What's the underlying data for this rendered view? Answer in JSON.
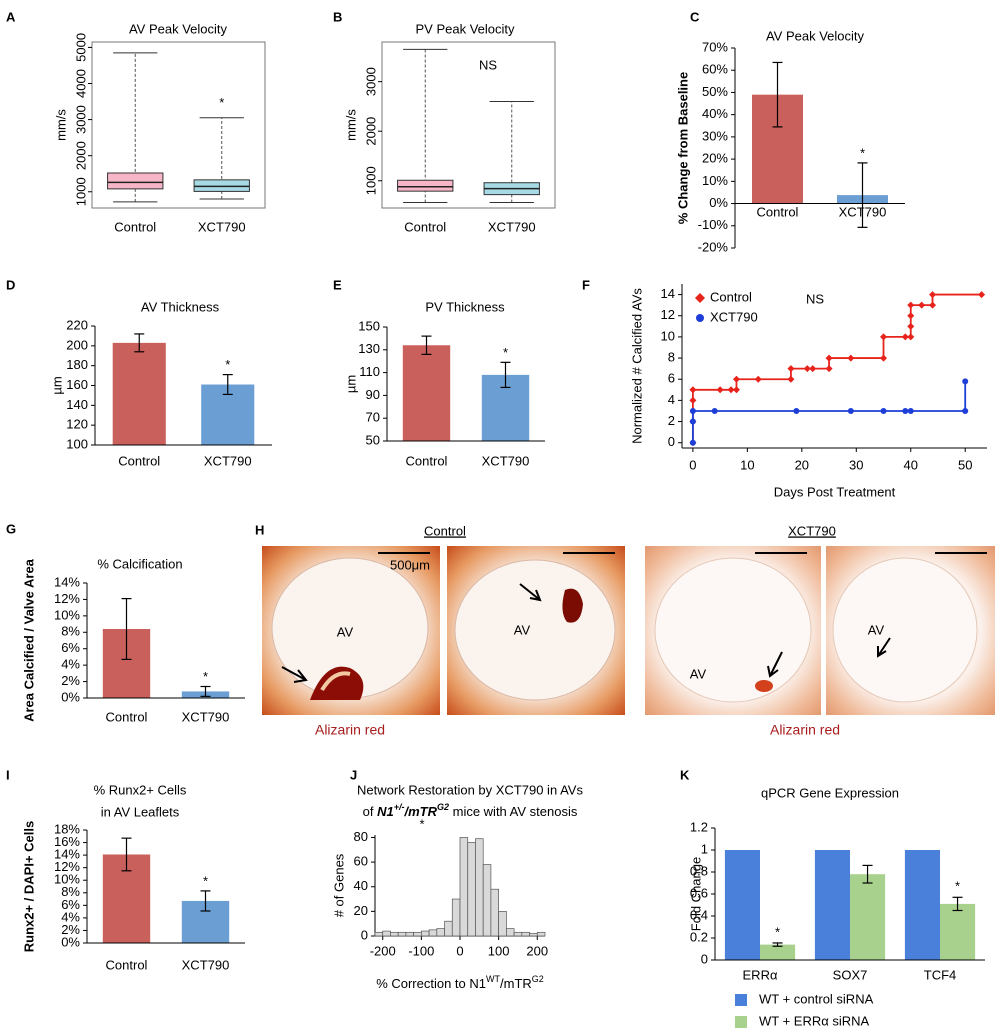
{
  "chart_data": [
    {
      "panel": "A",
      "type": "box",
      "title": "AV Peak Velocity",
      "ylabel": "mm/s",
      "categories": [
        "Control",
        "XCT790"
      ],
      "colors": [
        "#f7b6c8",
        "#a6dbe6"
      ],
      "boxes": [
        {
          "min": 720,
          "q1": 1080,
          "median": 1260,
          "q3": 1520,
          "max": 4850
        },
        {
          "min": 800,
          "q1": 1010,
          "median": 1150,
          "q3": 1330,
          "max": 3050
        }
      ],
      "ylim": [
        550,
        5150
      ],
      "yticks": [
        1000,
        2000,
        3000,
        4000,
        5000
      ],
      "annotations": [
        {
          "text": "*",
          "category": "XCT790"
        }
      ]
    },
    {
      "panel": "B",
      "type": "box",
      "title": "PV Peak Velocity",
      "ylabel": "mm/s",
      "categories": [
        "Control",
        "XCT790"
      ],
      "colors": [
        "#f7b6c8",
        "#a6dbe6"
      ],
      "boxes": [
        {
          "min": 560,
          "q1": 790,
          "median": 880,
          "q3": 1010,
          "max": 3650
        },
        {
          "min": 560,
          "q1": 720,
          "median": 840,
          "q3": 960,
          "max": 2600
        }
      ],
      "ylim": [
        450,
        3800
      ],
      "yticks": [
        1000,
        2000,
        3000
      ],
      "annotations": [
        {
          "text": "NS"
        }
      ]
    },
    {
      "panel": "C",
      "type": "bar",
      "title": "AV Peak Velocity",
      "ylabel": "% Change from Baseline",
      "categories": [
        "Control",
        "XCT790"
      ],
      "colors": [
        "#c9605c",
        "#6b9fd4"
      ],
      "values": [
        49,
        3.8
      ],
      "errors": [
        14.5,
        14.5
      ],
      "ylim": [
        -20,
        70
      ],
      "yticks": [
        {
          "value": -20,
          "label": "-20%"
        },
        {
          "value": -10,
          "label": "-10%"
        },
        {
          "value": 0,
          "label": "0%"
        },
        {
          "value": 10,
          "label": "10%"
        },
        {
          "value": 20,
          "label": "20%"
        },
        {
          "value": 30,
          "label": "30%"
        },
        {
          "value": 40,
          "label": "40%"
        },
        {
          "value": 50,
          "label": "50%"
        },
        {
          "value": 60,
          "label": "60%"
        },
        {
          "value": 70,
          "label": "70%"
        }
      ],
      "annotations": [
        {
          "text": "*",
          "category": "XCT790"
        }
      ]
    },
    {
      "panel": "D",
      "type": "bar",
      "title": "AV Thickness",
      "ylabel": "µm",
      "categories": [
        "Control",
        "XCT790"
      ],
      "colors": [
        "#c9605c",
        "#6b9fd4"
      ],
      "values": [
        203,
        161
      ],
      "errors": [
        9,
        10
      ],
      "ylim": [
        100,
        220
      ],
      "yticks": [
        100,
        120,
        140,
        160,
        180,
        200,
        220
      ],
      "annotations": [
        {
          "text": "*",
          "category": "XCT790"
        }
      ]
    },
    {
      "panel": "E",
      "type": "bar",
      "title": "PV Thickness",
      "ylabel": "µm",
      "categories": [
        "Control",
        "XCT790"
      ],
      "colors": [
        "#c9605c",
        "#6b9fd4"
      ],
      "values": [
        134,
        108
      ],
      "errors": [
        8,
        11
      ],
      "ylim": [
        50,
        150
      ],
      "yticks": [
        50,
        70,
        90,
        110,
        130,
        150
      ],
      "annotations": [
        {
          "text": "*",
          "category": "XCT790"
        }
      ]
    },
    {
      "panel": "F",
      "type": "line",
      "ylabel": "Normalized # Calcified AVs",
      "xlabel": "Days Post Treatment",
      "legend": "upper left",
      "series": [
        {
          "name": "Control",
          "color": "#e8231b",
          "marker": "diamond",
          "x": [
            0,
            0,
            0,
            0,
            5,
            7,
            8,
            8,
            12,
            18,
            18,
            21,
            22,
            25,
            25,
            29,
            35,
            35,
            39,
            40,
            40,
            40,
            40,
            42,
            44,
            44,
            53
          ],
          "values": [
            0,
            2,
            4,
            5,
            5,
            5,
            5,
            6,
            6,
            6,
            7,
            7,
            7,
            7,
            8,
            8,
            8,
            10,
            10,
            10,
            11,
            12,
            13,
            13,
            13,
            14,
            14
          ]
        },
        {
          "name": "XCT790",
          "color": "#1d3fd8",
          "marker": "circle",
          "x": [
            0,
            0,
            0,
            4,
            19,
            29,
            35,
            39,
            40,
            50,
            50
          ],
          "values": [
            0,
            2,
            3,
            3,
            3,
            3,
            3,
            3,
            3,
            3,
            5.8
          ]
        }
      ],
      "xlim": [
        -2,
        54
      ],
      "ylim": [
        -0.5,
        15
      ],
      "xticks": [
        0,
        10,
        20,
        30,
        40,
        50
      ],
      "yticks": [
        0,
        2,
        4,
        6,
        8,
        10,
        12,
        14
      ],
      "annotations": [
        {
          "text": "NS"
        }
      ]
    },
    {
      "panel": "G",
      "type": "bar",
      "title": "% Calcification",
      "ylabel": "Area Calcified / Valve Area",
      "categories": [
        "Control",
        "XCT790"
      ],
      "colors": [
        "#c9605c",
        "#6b9fd4"
      ],
      "values": [
        8.4,
        0.8
      ],
      "errors": [
        3.7,
        0.6
      ],
      "ylim": [
        0,
        14
      ],
      "yticks": [
        {
          "value": 0,
          "label": "0%"
        },
        {
          "value": 2,
          "label": "2%"
        },
        {
          "value": 4,
          "label": "4%"
        },
        {
          "value": 6,
          "label": "6%"
        },
        {
          "value": 8,
          "label": "8%"
        },
        {
          "value": 10,
          "label": "10%"
        },
        {
          "value": 12,
          "label": "12%"
        },
        {
          "value": 14,
          "label": "14%"
        }
      ],
      "annotations": [
        {
          "text": "*",
          "category": "XCT790"
        }
      ]
    },
    {
      "panel": "I",
      "type": "bar",
      "title": [
        "% Runx2+ Cells",
        "in AV Leaflets"
      ],
      "ylabel": "Runx2+ / DAPI+ Cells",
      "categories": [
        "Control",
        "XCT790"
      ],
      "colors": [
        "#c9605c",
        "#6b9fd4"
      ],
      "values": [
        14.1,
        6.7
      ],
      "errors": [
        2.6,
        1.6
      ],
      "ylim": [
        0,
        18
      ],
      "yticks": [
        {
          "value": 0,
          "label": "0%"
        },
        {
          "value": 2,
          "label": "2%"
        },
        {
          "value": 4,
          "label": "4%"
        },
        {
          "value": 6,
          "label": "6%"
        },
        {
          "value": 8,
          "label": "8%"
        },
        {
          "value": 10,
          "label": "10%"
        },
        {
          "value": 12,
          "label": "12%"
        },
        {
          "value": 14,
          "label": "14%"
        },
        {
          "value": 16,
          "label": "16%"
        },
        {
          "value": 18,
          "label": "18%"
        }
      ],
      "annotations": [
        {
          "text": "*",
          "category": "XCT790"
        }
      ]
    },
    {
      "panel": "J",
      "type": "histogram",
      "title": [
        "Network Restoration by XCT790 in AVs",
        [
          {
            "text": "of "
          },
          {
            "text": "N1",
            "italic": true,
            "bold": true
          },
          {
            "text": "+/-",
            "italic": true,
            "bold": true,
            "sup": true
          },
          {
            "text": "/mTR",
            "italic": true,
            "bold": true
          },
          {
            "text": "G2",
            "italic": true,
            "bold": true,
            "sup": true
          },
          {
            "text": " mice with AV stenosis"
          }
        ]
      ],
      "xlabel": [
        {
          "text": "% Correction to N1"
        },
        {
          "text": "WT",
          "sup": true
        },
        {
          "text": "/mTR"
        },
        {
          "text": "G2",
          "sup": true
        }
      ],
      "ylabel": "# of Genes",
      "color": "#d9d9d9",
      "bins": [
        -220,
        -200,
        -180,
        -160,
        -140,
        -120,
        -100,
        -80,
        -60,
        -40,
        -20,
        0,
        20,
        40,
        60,
        80,
        100,
        120,
        140,
        160,
        180,
        200,
        220
      ],
      "counts": [
        3,
        4,
        3,
        3,
        3,
        3,
        4,
        5,
        6,
        12,
        30,
        80,
        76,
        79,
        58,
        38,
        20,
        6,
        3,
        3,
        2,
        3
      ],
      "xlim": [
        -220,
        220
      ],
      "ylim": [
        0,
        82
      ],
      "xticks": [
        -200,
        -100,
        0,
        100,
        200
      ],
      "yticks": [
        0,
        20,
        40,
        60,
        80
      ],
      "annotations": [
        {
          "text": "*"
        }
      ]
    },
    {
      "panel": "K",
      "type": "grouped_bar",
      "title": "qPCR Gene Expression",
      "ylabel": "Fold Change",
      "categories": [
        "ERRα",
        "SOX7",
        "TCF4"
      ],
      "series": [
        {
          "name": "WT + control siRNA",
          "color": "#4a80d9",
          "values": [
            1,
            1,
            1
          ]
        },
        {
          "name": "WT + ERRα siRNA",
          "color": "#a9d18e",
          "values": [
            0.14,
            0.78,
            0.51
          ],
          "errors": [
            0.015,
            0.08,
            0.06
          ]
        }
      ],
      "ylim": [
        0,
        1.2
      ],
      "yticks": [
        0,
        0.2,
        0.4,
        0.6,
        0.8,
        1,
        1.2
      ],
      "annotations": [
        {
          "text": "*",
          "category": "ERRα"
        },
        {
          "text": "*",
          "category": "TCF4"
        }
      ]
    }
  ],
  "histology": {
    "panel": "H",
    "groups": [
      {
        "label": "Control",
        "caption": "Alizarin red"
      },
      {
        "label": "XCT790",
        "caption": "Alizarin red"
      }
    ],
    "scale_bar": "500μm",
    "region_labels": [
      "AV",
      "AV",
      "AV",
      "AV"
    ]
  }
}
